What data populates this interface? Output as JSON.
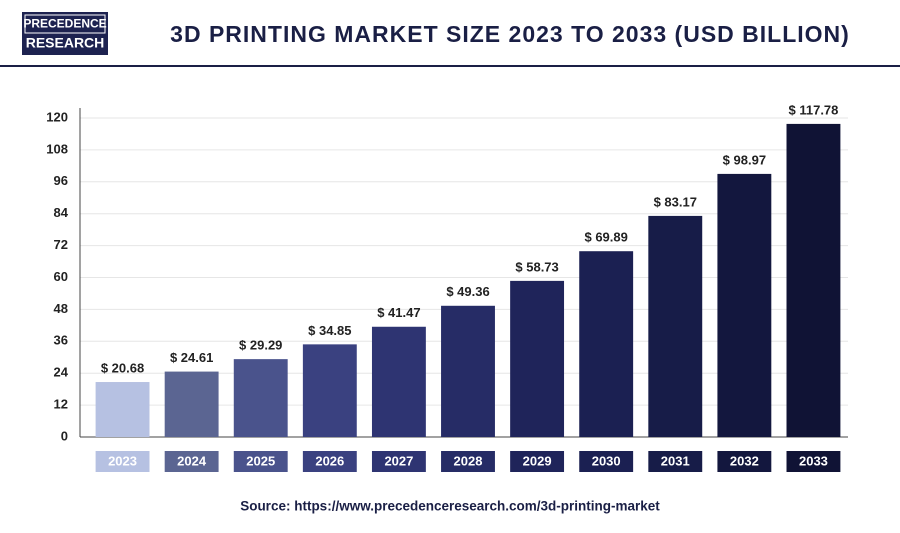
{
  "logo": {
    "line1": "PRECEDENCE",
    "line2": "RESEARCH"
  },
  "chart_data": {
    "type": "bar",
    "title": "3D PRINTING MARKET SIZE 2023 TO 2033 (USD BILLION)",
    "categories": [
      "2023",
      "2024",
      "2025",
      "2026",
      "2027",
      "2028",
      "2029",
      "2030",
      "2031",
      "2032",
      "2033"
    ],
    "values": [
      20.68,
      24.61,
      29.29,
      34.85,
      41.47,
      49.36,
      58.73,
      69.89,
      83.17,
      98.97,
      117.78
    ],
    "value_labels": [
      "$ 20.68",
      "$ 24.61",
      "$ 29.29",
      "$ 34.85",
      "$ 41.47",
      "$ 49.36",
      "$ 58.73",
      "$ 69.89",
      "$ 83.17",
      "$ 98.97",
      "$ 117.78"
    ],
    "colors": [
      "#b6c1e2",
      "#5b6592",
      "#4a538c",
      "#3a4180",
      "#2e3472",
      "#262c66",
      "#1f245a",
      "#1b2052",
      "#171c48",
      "#13173e",
      "#101335"
    ],
    "ylim": [
      0,
      120
    ],
    "yticks": [
      0,
      12,
      24,
      36,
      48,
      60,
      72,
      84,
      96,
      108,
      120
    ],
    "grid": true,
    "source": "Source: https://www.precedenceresearch.com/3d-printing-market"
  }
}
